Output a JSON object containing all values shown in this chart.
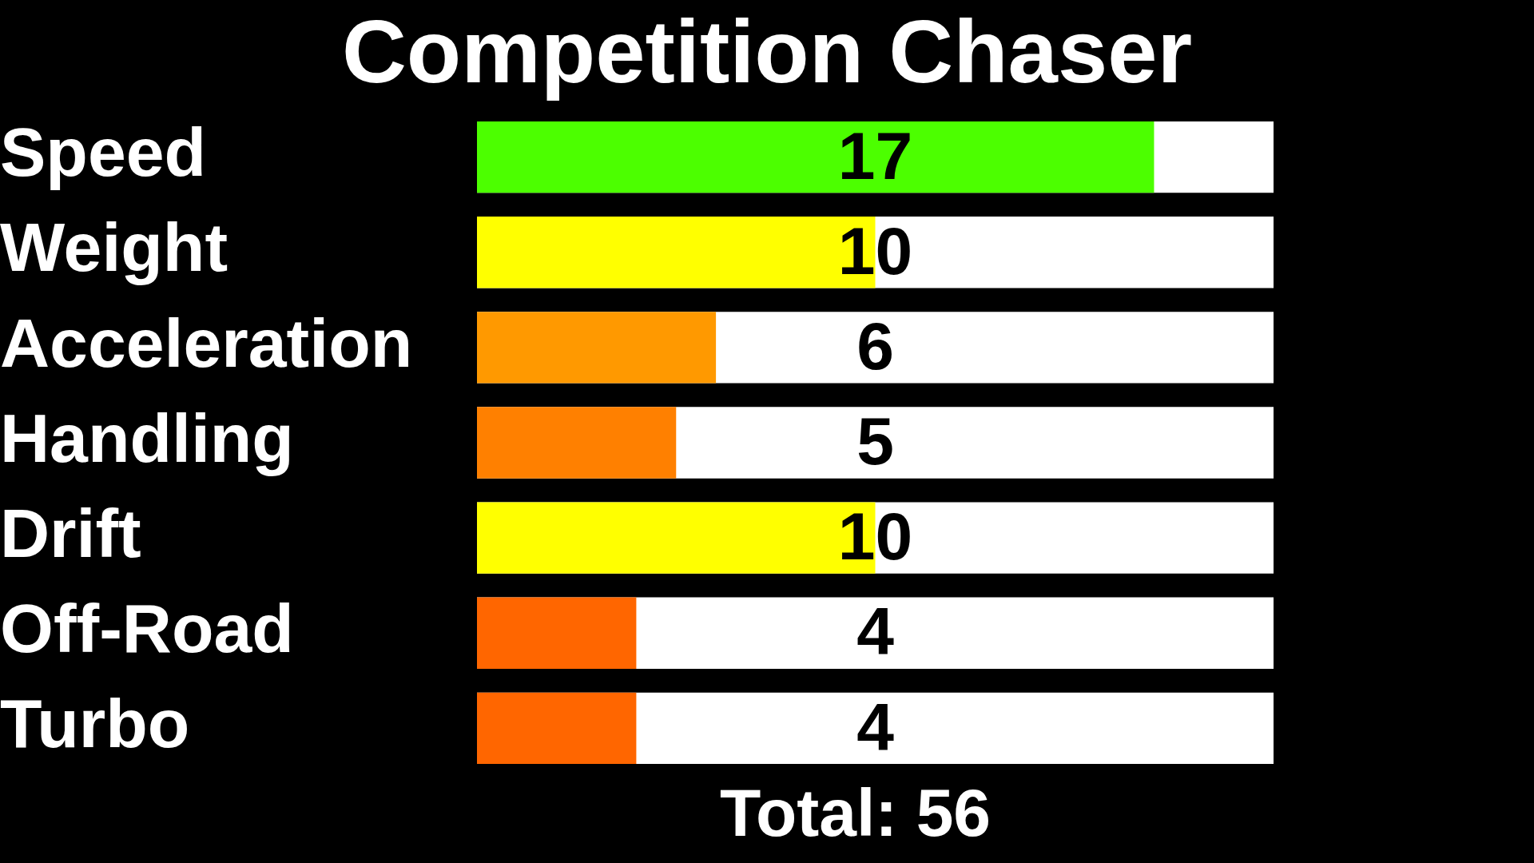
{
  "chart_data": {
    "type": "bar",
    "orientation": "horizontal",
    "title": "Competition Chaser",
    "categories": [
      "Speed",
      "Weight",
      "Acceleration",
      "Handling",
      "Drift",
      "Off-Road",
      "Turbo"
    ],
    "values": [
      17,
      10,
      6,
      5,
      10,
      4,
      4
    ],
    "colors": [
      "#4cff00",
      "#ffff00",
      "#ff9900",
      "#ff8000",
      "#ffff00",
      "#ff6600",
      "#ff6600"
    ],
    "xlim": [
      0,
      20
    ],
    "data_labels": true,
    "legend": false,
    "tick_labels": "y",
    "annotations": [
      "Total: 56"
    ]
  }
}
